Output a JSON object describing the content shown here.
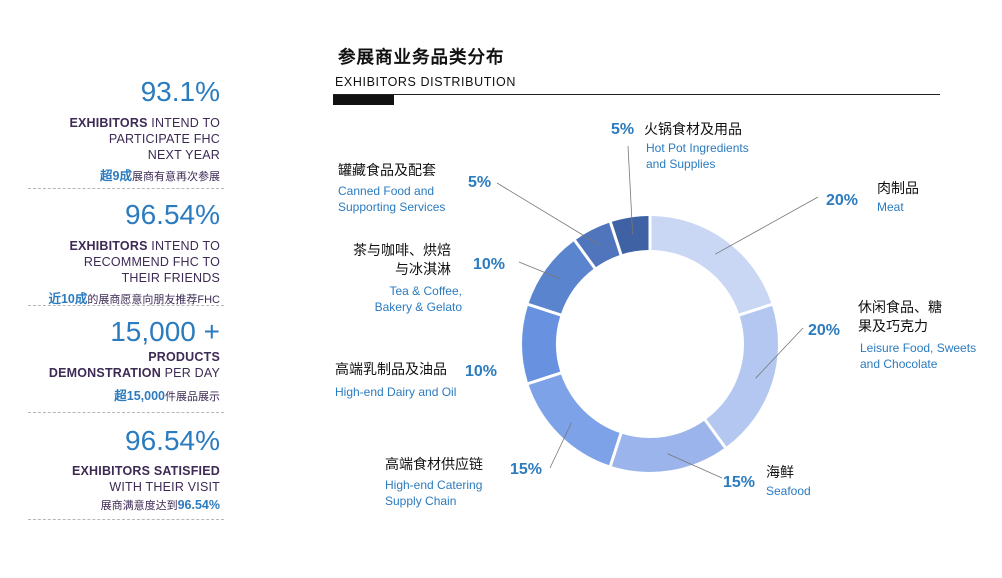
{
  "stats": [
    {
      "value": "93.1%",
      "desc_bold": "EXHIBITORS",
      "desc_rest": " INTEND TO\nPARTICIPATE FHC\nNEXT YEAR",
      "cn_bold": "超9成",
      "cn_rest": "展商有意再次参展"
    },
    {
      "value": "96.54%",
      "desc_bold": "EXHIBITORS",
      "desc_rest": " INTEND TO\nRECOMMEND FHC TO\nTHEIR FRIENDS",
      "cn_bold": "近10成",
      "cn_rest": "的展商愿意向朋友推荐FHC"
    },
    {
      "value": "15,000 +",
      "desc_bold": "PRODUCTS\nDEMONSTRATION",
      "desc_rest": " PER DAY",
      "cn_bold": "超15,000",
      "cn_rest": "件展品展示"
    },
    {
      "value": "96.54%",
      "desc_bold": "EXHIBITORS SATISFIED",
      "desc_rest": "\nWITH THEIR VISIT",
      "cn_bold": "96.54%",
      "cn_rest": "展商满意度达到"
    }
  ],
  "header": {
    "title_cn": "参展商业务品类分布",
    "title_en": "EXHIBITORS  DISTRIBUTION"
  },
  "chart_data": {
    "type": "pie",
    "donut": true,
    "order": "clockwise-from-top",
    "slices": [
      {
        "label_cn": "肉制品",
        "label_en": "Meat",
        "value": 20,
        "pct_label": "20%",
        "color": "#c9d7f4"
      },
      {
        "label_cn": "休闲食品、糖果及巧克力",
        "label_en": "Leisure Food, Sweets and Chocolate",
        "value": 20,
        "pct_label": "20%",
        "color": "#b3c7f0"
      },
      {
        "label_cn": "海鲜",
        "label_en": "Seafood",
        "value": 15,
        "pct_label": "15%",
        "color": "#9bb5ec"
      },
      {
        "label_cn": "高端食材供应链",
        "label_en": "High-end Catering Supply Chain",
        "value": 15,
        "pct_label": "15%",
        "color": "#7ea2e8"
      },
      {
        "label_cn": "高端乳制品及油品",
        "label_en": "High-end Dairy and Oil",
        "value": 10,
        "pct_label": "10%",
        "color": "#6892e0"
      },
      {
        "label_cn": "茶与咖啡、烘焙与冰淇淋",
        "label_en": "Tea & Coffee, Bakery & Gelato",
        "value": 10,
        "pct_label": "10%",
        "color": "#5b84cf"
      },
      {
        "label_cn": "罐藏食品及配套",
        "label_en": "Canned Food and Supporting Services",
        "value": 5,
        "pct_label": "5%",
        "color": "#5075bd"
      },
      {
        "label_cn": "火锅食材及用品",
        "label_en": "Hot Pot Ingredients and Supplies",
        "value": 5,
        "pct_label": "5%",
        "color": "#3f62a4"
      }
    ]
  },
  "chart_labels": [
    {
      "cn": [
        "肉制品"
      ],
      "en": [
        "Meat"
      ],
      "pct": "20%"
    },
    {
      "cn": [
        "休闲食品、糖",
        "果及巧克力"
      ],
      "en": [
        "Leisure Food, Sweets",
        "and Chocolate"
      ],
      "pct": "20%"
    },
    {
      "cn": [
        "海鲜"
      ],
      "en": [
        "Seafood"
      ],
      "pct": "15%"
    },
    {
      "cn": [
        "高端食材供应链"
      ],
      "en": [
        "High-end Catering",
        "Supply Chain"
      ],
      "pct": "15%"
    },
    {
      "cn": [
        "高端乳制品及油品"
      ],
      "en": [
        "High-end Dairy and Oil"
      ],
      "pct": "10%"
    },
    {
      "cn": [
        "茶与咖啡、烘焙",
        "与冰淇淋"
      ],
      "en": [
        "Tea & Coffee,",
        "Bakery & Gelato"
      ],
      "pct": "10%"
    },
    {
      "cn": [
        "罐藏食品及配套"
      ],
      "en": [
        "Canned Food and",
        "Supporting Services"
      ],
      "pct": "5%"
    },
    {
      "cn": [
        "火锅食材及用品"
      ],
      "en": [
        "Hot Pot Ingredients",
        "and Supplies"
      ],
      "pct": "5%"
    }
  ]
}
